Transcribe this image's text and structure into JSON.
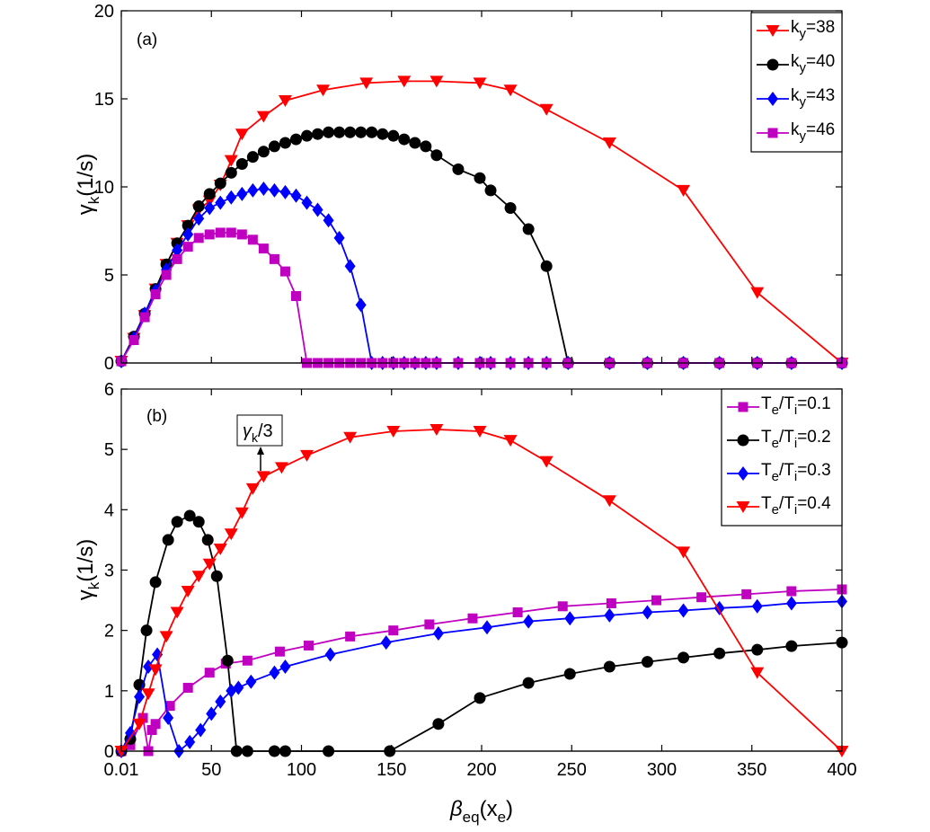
{
  "figure": {
    "xlabel": "β",
    "xlabel_sub": "eq",
    "xlabel_rest": "(x",
    "xlabel_sub2": "e",
    "xlabel_end": ")"
  },
  "chart_data": [
    {
      "type": "line",
      "panel_label": "(a)",
      "ylabel_main": "γ",
      "ylabel_sub": "k",
      "ylabel_rest": "(1/s)",
      "xlim": [
        0,
        400
      ],
      "ylim": [
        0,
        20
      ],
      "xticks": [
        0.01,
        50,
        100,
        150,
        200,
        250,
        300,
        350,
        400
      ],
      "xtick_labels": [
        "",
        "",
        "",
        "",
        "",
        "",
        "",
        "",
        ""
      ],
      "yticks": [
        0,
        5,
        10,
        15,
        20
      ],
      "ytick_labels": [
        "0",
        "5",
        "10",
        "15",
        "20"
      ],
      "legend_position": "top-right",
      "series": [
        {
          "name": "k_y=38",
          "legend_main": "k",
          "legend_sub": "y",
          "legend_rest": "=38",
          "color": "#ff0000",
          "marker": "triangle-down",
          "x": [
            0.01,
            7,
            13,
            19,
            25,
            31,
            37,
            43,
            49,
            55,
            61,
            67,
            79,
            91,
            112,
            136,
            157,
            175,
            199,
            216,
            236,
            271,
            312,
            353,
            400
          ],
          "y": [
            0.1,
            1.4,
            2.7,
            4.2,
            5.6,
            6.8,
            7.8,
            8.7,
            9.2,
            10.1,
            11.5,
            13.0,
            14.0,
            14.9,
            15.5,
            15.9,
            16.0,
            16.0,
            15.9,
            15.5,
            14.4,
            12.5,
            9.8,
            4.0,
            0.0
          ]
        },
        {
          "name": "k_y=40",
          "legend_main": "k",
          "legend_sub": "y",
          "legend_rest": "=40",
          "color": "#000000",
          "marker": "circle",
          "x": [
            0.01,
            7,
            13,
            19,
            25,
            31,
            37,
            43,
            49,
            55,
            61,
            67,
            73,
            79,
            85,
            91,
            97,
            103,
            109,
            115,
            121,
            127,
            133,
            139,
            145,
            151,
            157,
            163,
            169,
            175,
            187,
            199,
            205,
            216,
            226,
            236,
            248,
            271,
            292,
            312,
            332,
            353,
            372,
            400
          ],
          "y": [
            0.1,
            1.5,
            2.8,
            4.2,
            5.6,
            6.8,
            7.8,
            8.9,
            9.6,
            10.2,
            10.8,
            11.3,
            11.7,
            12.0,
            12.3,
            12.5,
            12.7,
            12.9,
            13.0,
            13.1,
            13.1,
            13.1,
            13.1,
            13.1,
            13.0,
            12.9,
            12.7,
            12.5,
            12.3,
            11.8,
            11.0,
            10.5,
            9.8,
            8.8,
            7.6,
            5.5,
            0.0,
            0.0,
            0.0,
            0.0,
            0.0,
            0.0,
            0.0,
            0.0
          ]
        },
        {
          "name": "k_y=43",
          "legend_main": "k",
          "legend_sub": "y",
          "legend_rest": "=43",
          "color": "#0000ff",
          "marker": "diamond",
          "x": [
            0.01,
            7,
            13,
            19,
            25,
            31,
            37,
            43,
            49,
            55,
            61,
            67,
            73,
            79,
            85,
            91,
            97,
            103,
            109,
            115,
            121,
            127,
            133,
            139,
            145,
            151,
            157,
            163,
            169,
            175,
            187,
            199,
            205,
            216,
            226,
            236,
            248,
            271,
            292,
            312,
            332,
            353,
            372,
            400
          ],
          "y": [
            0.1,
            1.4,
            2.8,
            4.1,
            5.3,
            6.4,
            7.3,
            8.2,
            8.8,
            9.1,
            9.4,
            9.6,
            9.8,
            9.9,
            9.8,
            9.7,
            9.5,
            9.1,
            8.7,
            8.1,
            7.1,
            5.5,
            3.3,
            0.0,
            0.0,
            0.0,
            0.0,
            0.0,
            0.0,
            0.0,
            0.0,
            0.0,
            0.0,
            0.0,
            0.0,
            0.0,
            0.0,
            0.0,
            0.0,
            0.0,
            0.0,
            0.0,
            0.0,
            0.0
          ]
        },
        {
          "name": "k_y=46",
          "legend_main": "k",
          "legend_sub": "y",
          "legend_rest": "=46",
          "color": "#c000c0",
          "marker": "square",
          "x": [
            0.01,
            7,
            13,
            19,
            25,
            31,
            37,
            43,
            49,
            55,
            61,
            67,
            73,
            79,
            85,
            91,
            97,
            103,
            109,
            115,
            121,
            127,
            133,
            139,
            145,
            151,
            157,
            163,
            169,
            175,
            187,
            199,
            205,
            216,
            226,
            236,
            248,
            271,
            292,
            312,
            332,
            353,
            372,
            400
          ],
          "y": [
            0.1,
            1.3,
            2.6,
            3.9,
            5.0,
            5.9,
            6.6,
            7.1,
            7.3,
            7.4,
            7.4,
            7.3,
            7.0,
            6.5,
            5.9,
            5.2,
            3.8,
            0.0,
            0.0,
            0.0,
            0.0,
            0.0,
            0.0,
            0.0,
            0.0,
            0.0,
            0.0,
            0.0,
            0.0,
            0.0,
            0.0,
            0.0,
            0.0,
            0.0,
            0.0,
            0.0,
            0.0,
            0.0,
            0.0,
            0.0,
            0.0,
            0.0,
            0.0,
            0.0
          ]
        }
      ]
    },
    {
      "type": "line",
      "panel_label": "(b)",
      "ylabel_main": "γ",
      "ylabel_sub": "k",
      "ylabel_rest": "(1/s)",
      "xlim": [
        0,
        400
      ],
      "ylim": [
        0,
        6
      ],
      "xticks": [
        0.01,
        50,
        100,
        150,
        200,
        250,
        300,
        350,
        400
      ],
      "xtick_labels": [
        "0.01",
        "50",
        "100",
        "150",
        "200",
        "250",
        "300",
        "350",
        "400"
      ],
      "yticks": [
        0,
        1,
        2,
        3,
        4,
        5,
        6
      ],
      "ytick_labels": [
        "0",
        "1",
        "2",
        "3",
        "4",
        "5",
        "6"
      ],
      "legend_position": "top-right",
      "annotation": {
        "main": "γ",
        "sub": "k",
        "rest": "/3",
        "points_to_x": 79,
        "points_to_y": 4.7
      },
      "series": [
        {
          "name": "T_e/T_i=0.1",
          "legend_main": "T",
          "legend_sub": "e",
          "legend_mid": "/T",
          "legend_sub2": "i",
          "legend_rest": "=0.1",
          "color": "#c000c0",
          "marker": "square",
          "x": [
            0.01,
            5,
            12,
            15,
            17,
            19,
            27,
            37,
            49,
            58,
            70,
            88,
            104,
            127,
            151,
            171,
            195,
            220,
            245,
            272,
            297,
            322,
            347,
            372,
            400
          ],
          "y": [
            0.0,
            0.1,
            0.55,
            0.0,
            0.35,
            0.45,
            0.75,
            1.05,
            1.3,
            1.45,
            1.5,
            1.65,
            1.75,
            1.9,
            2.0,
            2.1,
            2.2,
            2.3,
            2.4,
            2.45,
            2.5,
            2.55,
            2.6,
            2.65,
            2.68
          ]
        },
        {
          "name": "T_e/T_i=0.2",
          "legend_main": "T",
          "legend_sub": "e",
          "legend_mid": "/T",
          "legend_sub2": "i",
          "legend_rest": "=0.2",
          "color": "#000000",
          "marker": "circle",
          "x": [
            0.01,
            5,
            10,
            14,
            19,
            26,
            31,
            38,
            43,
            48,
            53,
            59,
            64,
            70,
            85,
            91,
            115,
            149,
            176,
            199,
            226,
            249,
            271,
            292,
            312,
            332,
            353,
            372,
            400
          ],
          "y": [
            0.0,
            0.2,
            1.1,
            2.0,
            2.8,
            3.5,
            3.8,
            3.9,
            3.8,
            3.5,
            2.9,
            1.5,
            0.0,
            0.0,
            0.0,
            0.0,
            0.0,
            0.0,
            0.45,
            0.88,
            1.13,
            1.28,
            1.4,
            1.48,
            1.55,
            1.62,
            1.68,
            1.74,
            1.8
          ]
        },
        {
          "name": "T_e/T_i=0.3",
          "legend_main": "T",
          "legend_sub": "e",
          "legend_mid": "/T",
          "legend_sub2": "i",
          "legend_rest": "=0.3",
          "color": "#0000ff",
          "marker": "diamond",
          "x": [
            0.01,
            5,
            10,
            15,
            20,
            26,
            32,
            38,
            44,
            50,
            55,
            61,
            65,
            72,
            85,
            91,
            116,
            147,
            176,
            203,
            226,
            249,
            271,
            292,
            312,
            332,
            353,
            372,
            400
          ],
          "y": [
            0.0,
            0.3,
            0.9,
            1.4,
            1.6,
            0.55,
            0.0,
            0.15,
            0.35,
            0.62,
            0.82,
            1.0,
            1.05,
            1.15,
            1.3,
            1.4,
            1.6,
            1.8,
            1.95,
            2.05,
            2.15,
            2.2,
            2.25,
            2.3,
            2.33,
            2.37,
            2.4,
            2.45,
            2.48
          ]
        },
        {
          "name": "T_e/T_i=0.4",
          "legend_main": "T",
          "legend_sub": "e",
          "legend_mid": "/T",
          "legend_sub2": "i",
          "legend_rest": "=0.4",
          "color": "#ff0000",
          "marker": "triangle-down",
          "x": [
            0.01,
            10,
            15,
            19,
            25,
            31,
            37,
            43,
            49,
            55,
            61,
            67,
            73,
            79,
            89,
            103,
            127,
            151,
            175,
            199,
            216,
            236,
            271,
            312,
            353,
            400
          ],
          "y": [
            0.0,
            0.45,
            0.95,
            1.35,
            1.9,
            2.3,
            2.65,
            2.9,
            3.1,
            3.35,
            3.6,
            3.95,
            4.35,
            4.55,
            4.7,
            4.9,
            5.2,
            5.3,
            5.33,
            5.3,
            5.15,
            4.8,
            4.15,
            3.3,
            1.3,
            0.0
          ]
        }
      ]
    }
  ]
}
